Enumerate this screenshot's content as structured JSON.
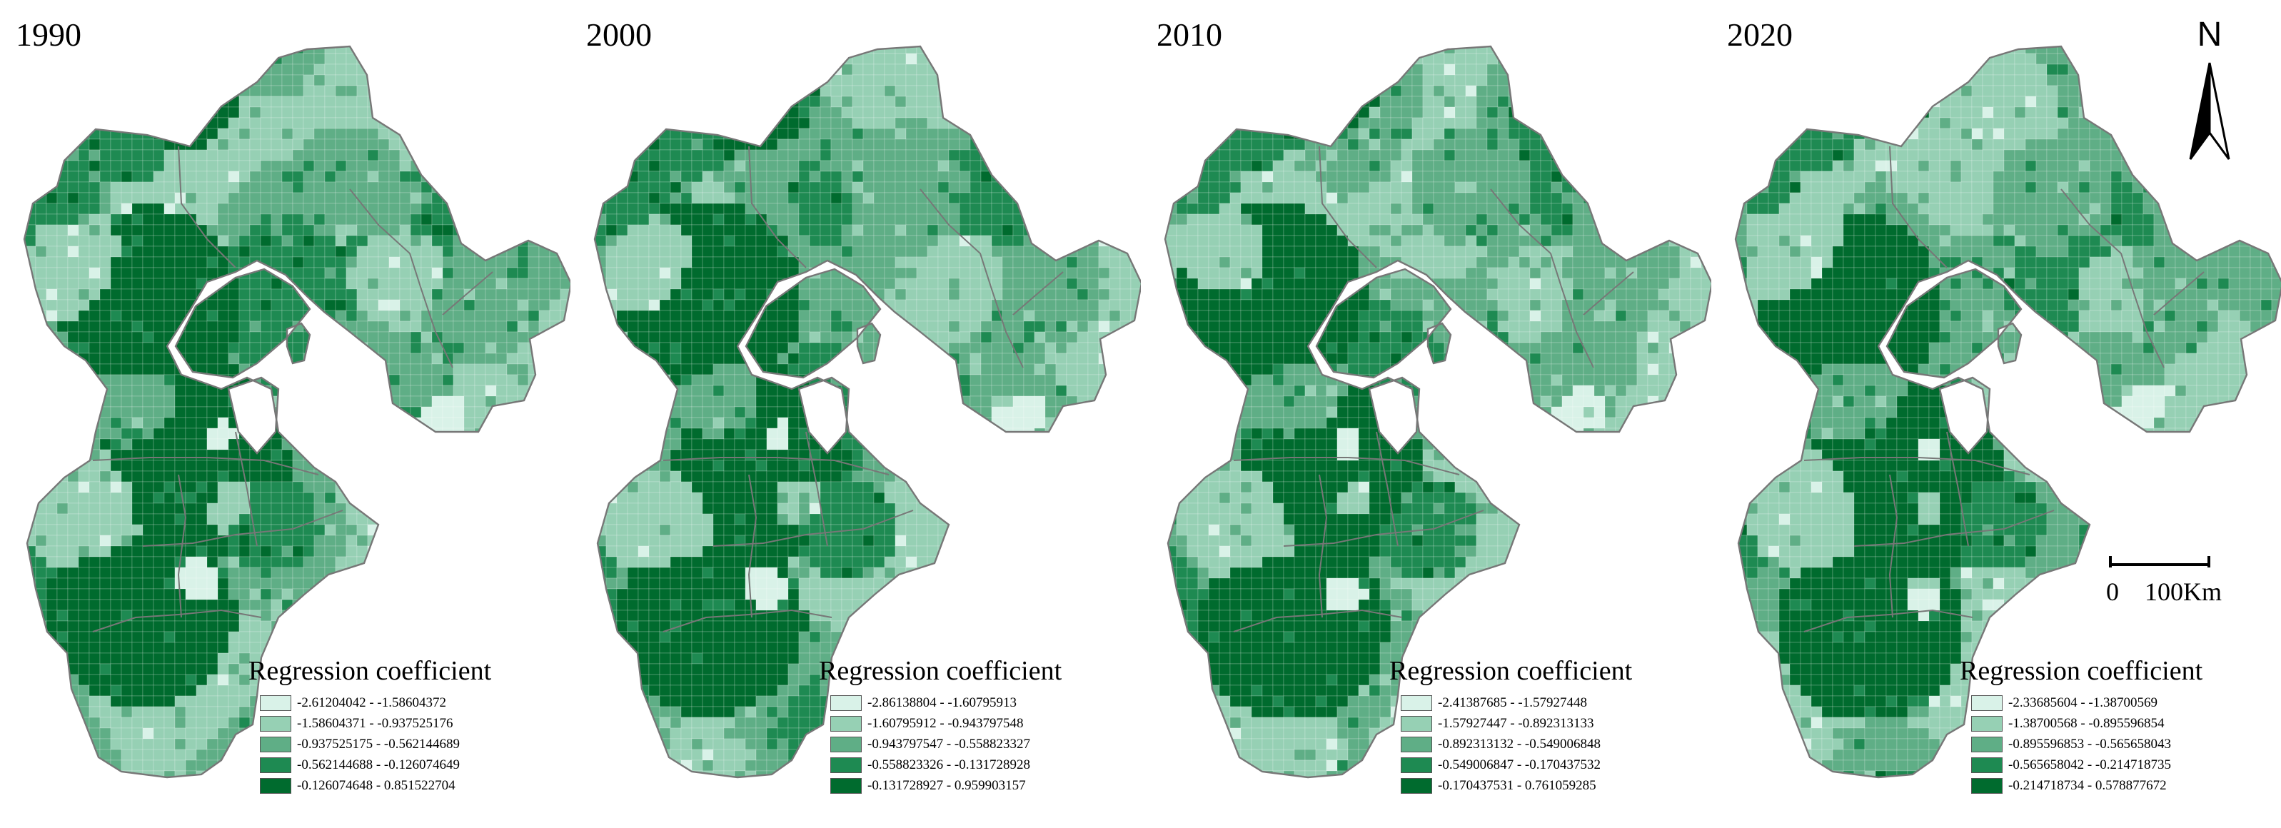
{
  "legend_title": "Regression coefficient",
  "palette": [
    "#d9f2e8",
    "#96d0b4",
    "#5fae86",
    "#1e8a52",
    "#006b2e"
  ],
  "colors": {
    "boundary": "#777777",
    "cell_line": "#ffffff"
  },
  "north_label": "N",
  "scale": {
    "zero": "0",
    "end": "100Km"
  },
  "panels": [
    {
      "year": "1990",
      "legend": [
        "-2.61204042 - -1.58604372",
        "-1.58604371 - -0.937525176",
        "-0.937525175 - -0.562144689",
        "-0.562144688 - -0.126074649",
        "-0.126074648 - 0.851522704"
      ]
    },
    {
      "year": "2000",
      "legend": [
        "-2.86138804 - -1.60795913",
        "-1.60795912 - -0.943797548",
        "-0.943797547 - -0.558823327",
        "-0.558823326 - -0.131728928",
        "-0.131728927 - 0.959903157"
      ]
    },
    {
      "year": "2010",
      "legend": [
        "-2.41387685 - -1.57927448",
        "-1.57927447 - -0.892313133",
        "-0.892313132 - -0.549006848",
        "-0.549006847 - -0.170437532",
        "-0.170437531 - 0.761059285"
      ]
    },
    {
      "year": "2020",
      "legend": [
        "-2.33685604 - -1.38700569",
        "-1.38700568 - -0.895596854",
        "-0.895596853 - -0.565658043",
        "-0.565658042 - -0.214718735",
        "-0.214718734 - 0.578877672"
      ]
    }
  ]
}
